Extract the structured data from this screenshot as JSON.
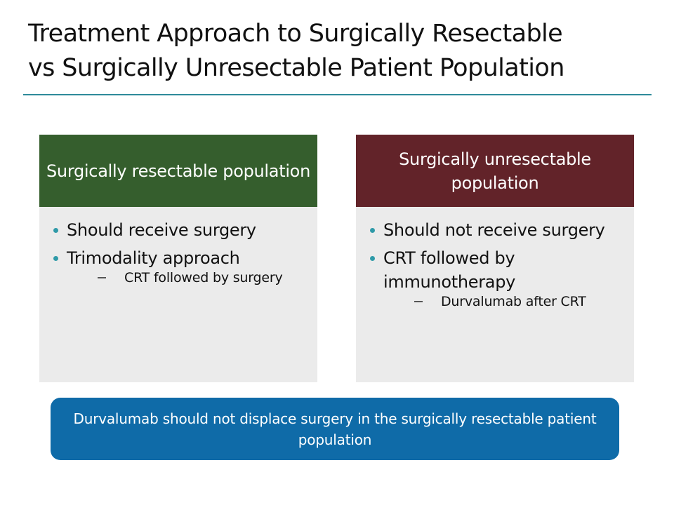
{
  "title": {
    "line1": "Treatment Approach to Surgically Resectable",
    "line2": "vs Surgically Unresectable Patient Population"
  },
  "colors": {
    "title_rule": "#2f8a9a",
    "left_header": "#355e2d",
    "right_header": "#622329",
    "panel_body": "#ebebeb",
    "bullet": "#2f9aa8",
    "callout": "#0f6ba8"
  },
  "panels": [
    {
      "header": [
        "Surgically resectable",
        "population"
      ],
      "bullets": [
        {
          "text": "Should receive surgery",
          "sub": []
        },
        {
          "text": "Trimodality approach",
          "sub": [
            "CRT followed by surgery"
          ]
        }
      ]
    },
    {
      "header": [
        "Surgically unresectable",
        "population"
      ],
      "bullets": [
        {
          "text": "Should not receive surgery",
          "sub": []
        },
        {
          "text": "CRT followed by immunotherapy",
          "sub": [
            "Durvalumab after CRT"
          ]
        }
      ]
    }
  ],
  "callout": {
    "line1": "Durvalumab should not displace surgery in the surgically",
    "line2": "resectable patient population"
  }
}
